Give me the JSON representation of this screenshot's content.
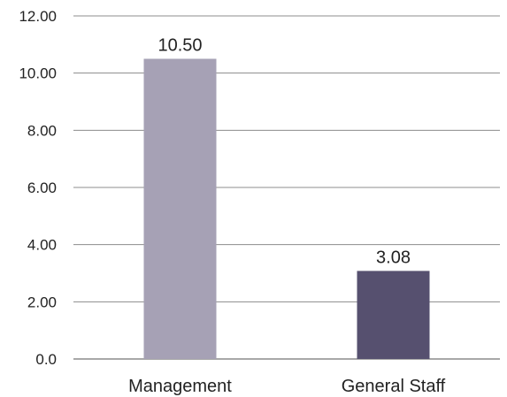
{
  "chart_data": {
    "type": "bar",
    "categories": [
      "Management",
      "General Staff"
    ],
    "values": [
      10.5,
      3.08
    ],
    "data_labels": [
      "10.50",
      "3.08"
    ],
    "title": "",
    "xlabel": "",
    "ylabel": "",
    "ylim": [
      0,
      12
    ],
    "yticks": [
      0,
      2,
      4,
      6,
      8,
      10,
      12
    ],
    "ytick_labels": [
      "0.0",
      "2.00",
      "4.00",
      "6.00",
      "8.00",
      "10.00",
      "12.00"
    ],
    "grid": true,
    "legend": "none",
    "colors": [
      "#a6a1b5",
      "#56506f"
    ]
  }
}
